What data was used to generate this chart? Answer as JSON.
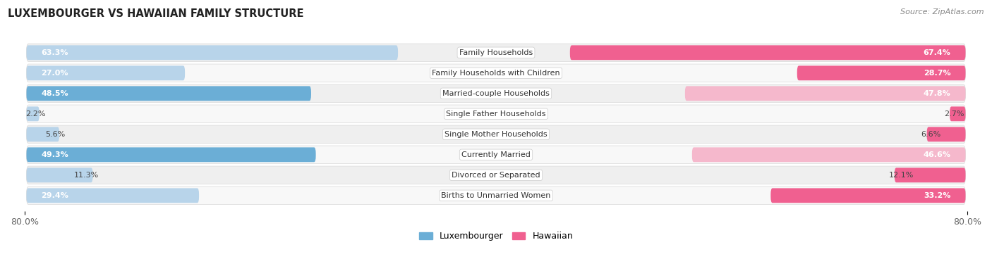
{
  "title": "Luxembourger vs Hawaiian Family Structure",
  "source": "Source: ZipAtlas.com",
  "categories": [
    "Family Households",
    "Family Households with Children",
    "Married-couple Households",
    "Single Father Households",
    "Single Mother Households",
    "Currently Married",
    "Divorced or Separated",
    "Births to Unmarried Women"
  ],
  "luxembourger": [
    63.3,
    27.0,
    48.5,
    2.2,
    5.6,
    49.3,
    11.3,
    29.4
  ],
  "hawaiian": [
    67.4,
    28.7,
    47.8,
    2.7,
    6.6,
    46.6,
    12.1,
    33.2
  ],
  "luxembourger_dark": "#6baed6",
  "hawaiian_dark": "#f06090",
  "luxembourger_light": "#b8d4ea",
  "hawaiian_light": "#f5b8cc",
  "axis_max": 80.0,
  "background_color": "#f5f5f5",
  "row_bg_even": "#efefef",
  "row_bg_odd": "#f8f8f8",
  "row_border": "#d8d8d8"
}
